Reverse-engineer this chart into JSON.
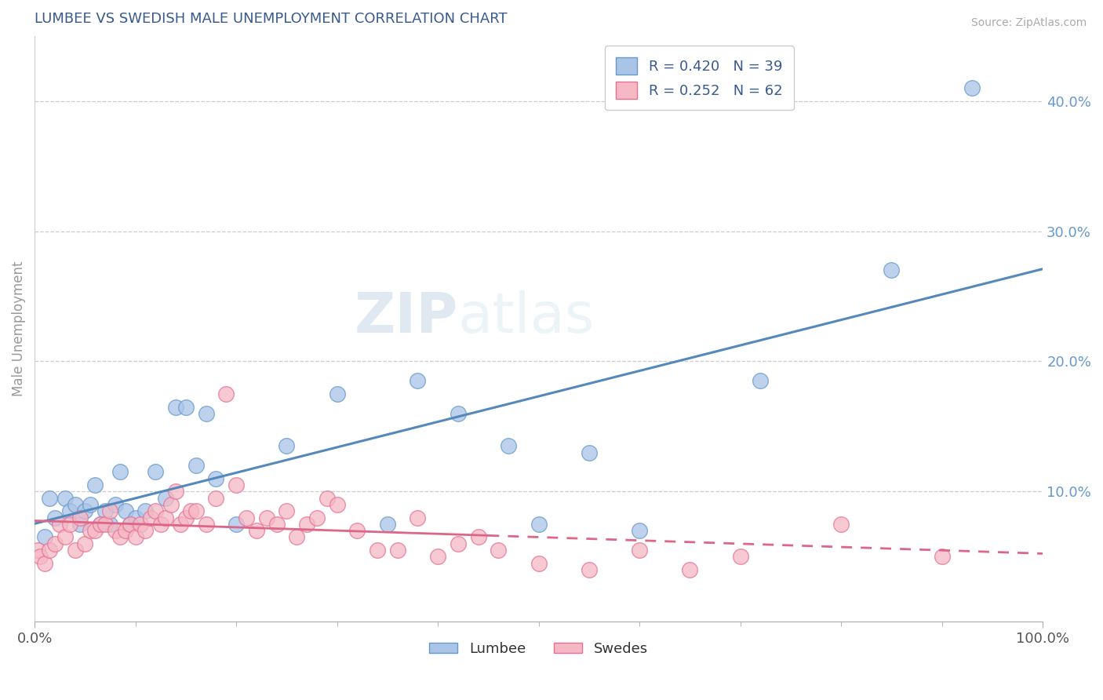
{
  "title": "LUMBEE VS SWEDISH MALE UNEMPLOYMENT CORRELATION CHART",
  "source": "Source: ZipAtlas.com",
  "ylabel": "Male Unemployment",
  "title_color": "#3a5a8c",
  "background_color": "#ffffff",
  "plot_bg_color": "#ffffff",
  "watermark_zip": "ZIP",
  "watermark_atlas": "atlas",
  "lumbee_color": "#aac4e8",
  "lumbee_edge_color": "#6699cc",
  "lumbee_line_color": "#5588bb",
  "swedes_color": "#f5b8c4",
  "swedes_edge_color": "#e87090",
  "swedes_line_color": "#dd6688",
  "lumbee_R": 0.42,
  "lumbee_N": 39,
  "swedes_R": 0.252,
  "swedes_N": 62,
  "lumbee_x": [
    1.0,
    1.5,
    2.0,
    3.0,
    3.5,
    4.0,
    4.5,
    5.0,
    5.5,
    6.0,
    6.5,
    7.0,
    7.5,
    8.0,
    8.5,
    9.0,
    9.5,
    10.0,
    11.0,
    12.0,
    13.0,
    14.0,
    15.0,
    16.0,
    17.0,
    18.0,
    20.0,
    25.0,
    30.0,
    35.0,
    38.0,
    42.0,
    47.0,
    50.0,
    55.0,
    60.0,
    72.0,
    85.0,
    93.0
  ],
  "lumbee_y": [
    6.5,
    9.5,
    8.0,
    9.5,
    8.5,
    9.0,
    7.5,
    8.5,
    9.0,
    10.5,
    7.5,
    8.5,
    7.5,
    9.0,
    11.5,
    8.5,
    7.5,
    8.0,
    8.5,
    11.5,
    9.5,
    16.5,
    16.5,
    12.0,
    16.0,
    11.0,
    7.5,
    13.5,
    17.5,
    7.5,
    18.5,
    16.0,
    13.5,
    7.5,
    13.0,
    7.0,
    18.5,
    27.0,
    41.0
  ],
  "swedes_x": [
    0.3,
    0.5,
    1.0,
    1.5,
    2.0,
    2.5,
    3.0,
    3.5,
    4.0,
    4.5,
    5.0,
    5.5,
    6.0,
    6.5,
    7.0,
    7.5,
    8.0,
    8.5,
    9.0,
    9.5,
    10.0,
    10.5,
    11.0,
    11.5,
    12.0,
    12.5,
    13.0,
    13.5,
    14.0,
    14.5,
    15.0,
    15.5,
    16.0,
    17.0,
    18.0,
    19.0,
    20.0,
    21.0,
    22.0,
    23.0,
    24.0,
    25.0,
    26.0,
    27.0,
    28.0,
    29.0,
    30.0,
    32.0,
    34.0,
    36.0,
    38.0,
    40.0,
    42.0,
    44.0,
    46.0,
    50.0,
    55.0,
    60.0,
    65.0,
    70.0,
    80.0,
    90.0
  ],
  "swedes_y": [
    5.5,
    5.0,
    4.5,
    5.5,
    6.0,
    7.5,
    6.5,
    7.5,
    5.5,
    8.0,
    6.0,
    7.0,
    7.0,
    7.5,
    7.5,
    8.5,
    7.0,
    6.5,
    7.0,
    7.5,
    6.5,
    7.5,
    7.0,
    8.0,
    8.5,
    7.5,
    8.0,
    9.0,
    10.0,
    7.5,
    8.0,
    8.5,
    8.5,
    7.5,
    9.5,
    17.5,
    10.5,
    8.0,
    7.0,
    8.0,
    7.5,
    8.5,
    6.5,
    7.5,
    8.0,
    9.5,
    9.0,
    7.0,
    5.5,
    5.5,
    8.0,
    5.0,
    6.0,
    6.5,
    5.5,
    4.5,
    4.0,
    5.5,
    4.0,
    5.0,
    7.5,
    5.0
  ],
  "xlim": [
    0.0,
    100.0
  ],
  "ylim": [
    0.0,
    45.0
  ],
  "yticks": [
    10,
    20,
    30,
    40
  ],
  "ytick_labels": [
    "10.0%",
    "20.0%",
    "30.0%",
    "40.0%"
  ],
  "xtick_labels_pos": [
    0,
    100
  ],
  "xtick_labels": [
    "0.0%",
    "100.0%"
  ],
  "grid_color": "#cccccc",
  "legend_text_color": "#3a5a8c",
  "tick_color": "#6699cc"
}
